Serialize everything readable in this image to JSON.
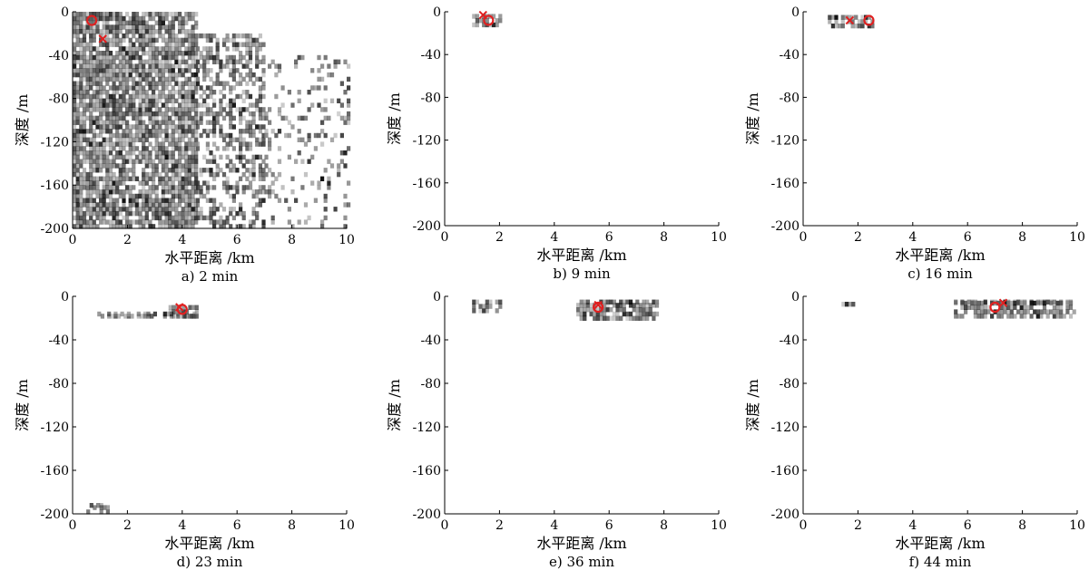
{
  "chart_data": [
    {
      "panel": "a)",
      "time": "2 min",
      "caption": "a)  2 min",
      "type": "heatmap",
      "xlabel": "水平距离 /km",
      "ylabel": "深度 /m",
      "xlim": [
        0,
        10
      ],
      "ylim": [
        -200,
        0
      ],
      "xticks": [
        0,
        2,
        4,
        6,
        8,
        10
      ],
      "yticks": [
        0,
        -40,
        -80,
        -120,
        -160,
        -200
      ],
      "intensity_regions": [
        {
          "x": [
            0,
            4.5
          ],
          "y": [
            -200,
            0
          ],
          "density": 0.85
        },
        {
          "x": [
            4.5,
            7
          ],
          "y": [
            -200,
            -20
          ],
          "density": 0.45
        },
        {
          "x": [
            7,
            10
          ],
          "y": [
            -200,
            -40
          ],
          "density": 0.18
        }
      ],
      "markers": [
        {
          "symbol": "o",
          "x": 0.7,
          "y": -8
        },
        {
          "symbol": "x",
          "x": 1.1,
          "y": -25
        }
      ]
    },
    {
      "panel": "b)",
      "time": "9 min",
      "caption": "b)  9 min",
      "type": "heatmap",
      "xlabel": "水平距离 /km",
      "ylabel": "深度 /m",
      "xlim": [
        0,
        10
      ],
      "ylim": [
        -200,
        0
      ],
      "xticks": [
        0,
        2,
        4,
        6,
        8,
        10
      ],
      "yticks": [
        0,
        -40,
        -80,
        -120,
        -160,
        -200
      ],
      "intensity_regions": [
        {
          "x": [
            1.0,
            2.0
          ],
          "y": [
            -14,
            -2
          ],
          "density": 0.8
        }
      ],
      "markers": [
        {
          "symbol": "o",
          "x": 1.6,
          "y": -8
        },
        {
          "symbol": "x",
          "x": 1.4,
          "y": -3
        }
      ]
    },
    {
      "panel": "c)",
      "time": "16 min",
      "caption": "c)  16 min",
      "type": "heatmap",
      "xlabel": "水平距离 /km",
      "ylabel": "深度 /m",
      "xlim": [
        0,
        10
      ],
      "ylim": [
        -200,
        0
      ],
      "xticks": [
        0,
        2,
        4,
        6,
        8,
        10
      ],
      "yticks": [
        0,
        -40,
        -80,
        -120,
        -160,
        -200
      ],
      "intensity_regions": [
        {
          "x": [
            0.9,
            2.5
          ],
          "y": [
            -15,
            -3
          ],
          "density": 0.75
        }
      ],
      "markers": [
        {
          "symbol": "o",
          "x": 2.4,
          "y": -8
        },
        {
          "symbol": "x",
          "x": 1.7,
          "y": -8
        }
      ]
    },
    {
      "panel": "d)",
      "time": "23 min",
      "caption": "d)  23 min",
      "type": "heatmap",
      "xlabel": "水平距离 /km",
      "ylabel": "深度 /m",
      "xlim": [
        0,
        10
      ],
      "ylim": [
        -200,
        0
      ],
      "xticks": [
        0,
        2,
        4,
        6,
        8,
        10
      ],
      "yticks": [
        0,
        -40,
        -80,
        -120,
        -160,
        -200
      ],
      "intensity_regions": [
        {
          "x": [
            0.9,
            4.5
          ],
          "y": [
            -20,
            -14
          ],
          "density": 0.6
        },
        {
          "x": [
            3.5,
            4.5
          ],
          "y": [
            -20,
            -8
          ],
          "density": 0.85
        },
        {
          "x": [
            0.5,
            1.3
          ],
          "y": [
            -200,
            -190
          ],
          "density": 0.5
        }
      ],
      "markers": [
        {
          "symbol": "o",
          "x": 4.0,
          "y": -12
        },
        {
          "symbol": "x",
          "x": 3.9,
          "y": -10
        }
      ]
    },
    {
      "panel": "e)",
      "time": "36 min",
      "caption": "e)  36 min",
      "type": "heatmap",
      "xlabel": "水平距离 /km",
      "ylabel": "深度 /m",
      "xlim": [
        0,
        10
      ],
      "ylim": [
        -200,
        0
      ],
      "xticks": [
        0,
        2,
        4,
        6,
        8,
        10
      ],
      "yticks": [
        0,
        -40,
        -80,
        -120,
        -160,
        -200
      ],
      "intensity_regions": [
        {
          "x": [
            1.0,
            2.0
          ],
          "y": [
            -15,
            -3
          ],
          "density": 0.6
        },
        {
          "x": [
            4.8,
            7.8
          ],
          "y": [
            -22,
            -3
          ],
          "density": 0.8
        }
      ],
      "markers": [
        {
          "symbol": "o",
          "x": 5.6,
          "y": -10
        },
        {
          "symbol": "x",
          "x": 5.6,
          "y": -8
        }
      ]
    },
    {
      "panel": "f)",
      "time": "44 min",
      "caption": "f)  44 min",
      "type": "heatmap",
      "xlabel": "水平距离 /km",
      "ylabel": "深度 /m",
      "xlim": [
        0,
        10
      ],
      "ylim": [
        -200,
        0
      ],
      "xticks": [
        0,
        2,
        4,
        6,
        8,
        10
      ],
      "yticks": [
        0,
        -40,
        -80,
        -120,
        -160,
        -200
      ],
      "intensity_regions": [
        {
          "x": [
            1.4,
            1.8
          ],
          "y": [
            -9,
            -5
          ],
          "density": 0.3
        },
        {
          "x": [
            5.5,
            9.9
          ],
          "y": [
            -20,
            -3
          ],
          "density": 0.7
        }
      ],
      "markers": [
        {
          "symbol": "o",
          "x": 7.0,
          "y": -10
        },
        {
          "symbol": "x",
          "x": 7.3,
          "y": -6
        }
      ]
    }
  ],
  "colors": {
    "marker": "#e02020",
    "ink": "#000000"
  }
}
